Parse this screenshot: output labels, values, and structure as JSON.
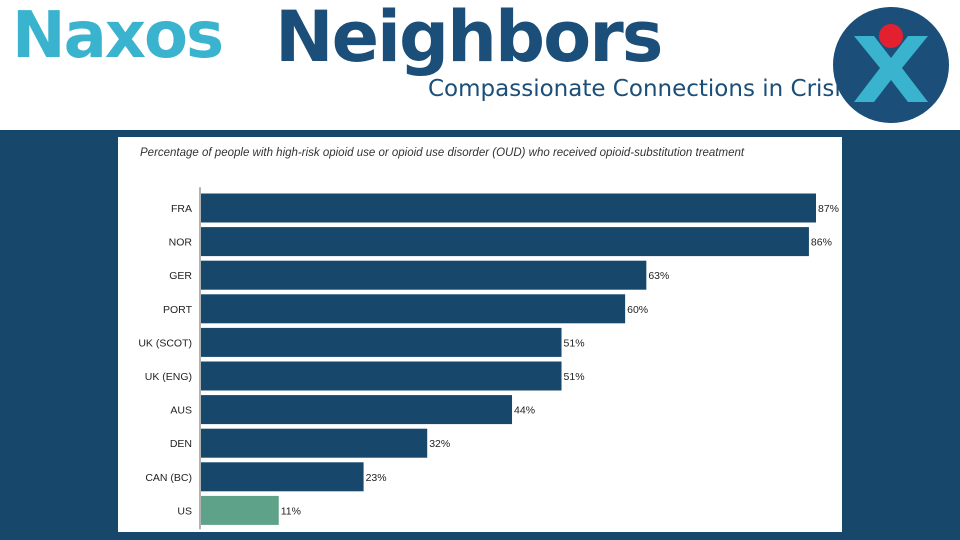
{
  "header": {
    "brand_part1": "Naxos",
    "brand_part2": "Neighbors",
    "tagline": "Compassionate Connections in Crisis"
  },
  "colors": {
    "brand_teal": "#3ab3cf",
    "brand_navy": "#1b4e78",
    "accent_red": "#e3202f",
    "background": "#17486b",
    "bar_primary": "#17486b",
    "bar_highlight": "#5fa28a"
  },
  "chart_data": {
    "type": "bar",
    "orientation": "horizontal",
    "title": "Percentage of people with high-risk opioid use or opioid use disorder (OUD) who received opioid-substitution treatment",
    "categories": [
      "FRA",
      "NOR",
      "GER",
      "PORT",
      "UK (SCOT)",
      "UK (ENG)",
      "AUS",
      "DEN",
      "CAN (BC)",
      "US"
    ],
    "values": [
      87,
      86,
      63,
      60,
      51,
      51,
      44,
      32,
      23,
      11
    ],
    "value_labels": [
      "87%",
      "86%",
      "63%",
      "60%",
      "51%",
      "51%",
      "44%",
      "32%",
      "23%",
      "11%"
    ],
    "highlight_category": "US",
    "xlim": [
      0,
      87
    ],
    "xlabel": "",
    "ylabel": "",
    "grid": false,
    "legend": "none"
  }
}
